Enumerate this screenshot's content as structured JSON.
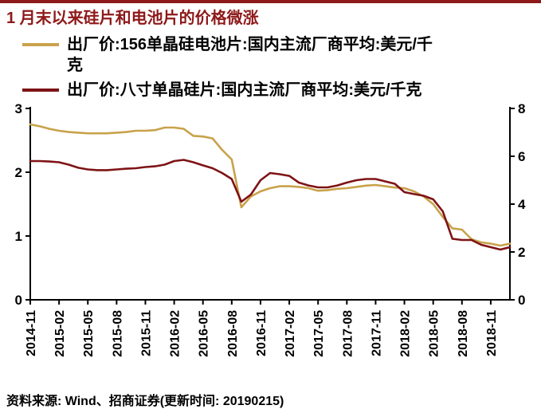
{
  "title": "1 月末以来硅片和电池片的价格微涨",
  "footer": {
    "source": "资料来源: Wind、招商证券(更新时间: 20190215)"
  },
  "theme": {
    "accent": "#8E1919",
    "axis": "#000000",
    "background": "#FFFFFF",
    "gold": "#C8A24B",
    "dark_red": "#7E1315"
  },
  "chart_data": {
    "type": "line",
    "title": "1 月末以来硅片和电池片的价格微涨",
    "legend_position": "top-left",
    "grid": false,
    "x_tick_step": 3,
    "months": [
      "2014-11",
      "2014-12",
      "2015-01",
      "2015-02",
      "2015-03",
      "2015-04",
      "2015-05",
      "2015-06",
      "2015-07",
      "2015-08",
      "2015-09",
      "2015-10",
      "2015-11",
      "2015-12",
      "2016-01",
      "2016-02",
      "2016-03",
      "2016-04",
      "2016-05",
      "2016-06",
      "2016-07",
      "2016-08",
      "2016-09",
      "2016-10",
      "2016-11",
      "2016-12",
      "2017-01",
      "2017-02",
      "2017-03",
      "2017-04",
      "2017-05",
      "2017-06",
      "2017-07",
      "2017-08",
      "2017-09",
      "2017-10",
      "2017-11",
      "2017-12",
      "2018-01",
      "2018-02",
      "2018-03",
      "2018-04",
      "2018-05",
      "2018-06",
      "2018-07",
      "2018-08",
      "2018-09",
      "2018-10",
      "2018-11",
      "2018-12",
      "2019-01"
    ],
    "left_axis": {
      "range": [
        0,
        3
      ],
      "ticks": [
        0,
        1,
        2,
        3
      ]
    },
    "right_axis": {
      "range": [
        0,
        8
      ],
      "ticks": [
        0,
        2,
        4,
        6,
        8
      ]
    },
    "series": [
      {
        "name": "出厂价:156单晶硅电池片:国内主流厂商平均:美元/千克",
        "axis": "left",
        "color": "#C8A24B",
        "values": [
          2.75,
          2.72,
          2.68,
          2.65,
          2.63,
          2.62,
          2.61,
          2.61,
          2.61,
          2.62,
          2.63,
          2.65,
          2.65,
          2.66,
          2.7,
          2.7,
          2.68,
          2.57,
          2.56,
          2.53,
          2.35,
          2.2,
          1.45,
          1.62,
          1.7,
          1.75,
          1.78,
          1.78,
          1.77,
          1.75,
          1.71,
          1.72,
          1.74,
          1.75,
          1.77,
          1.79,
          1.8,
          1.78,
          1.76,
          1.75,
          1.7,
          1.62,
          1.5,
          1.3,
          1.12,
          1.1,
          0.95,
          0.9,
          0.88,
          0.85,
          0.88
        ]
      },
      {
        "name": "出厂价:八寸单晶硅片:国内主流厂商平均:美元/千克",
        "axis": "right",
        "color": "#7E1315",
        "values": [
          5.8,
          5.8,
          5.78,
          5.75,
          5.65,
          5.52,
          5.45,
          5.42,
          5.42,
          5.45,
          5.48,
          5.5,
          5.55,
          5.58,
          5.65,
          5.8,
          5.85,
          5.75,
          5.62,
          5.5,
          5.3,
          5.05,
          4.1,
          4.4,
          5.0,
          5.3,
          5.25,
          5.18,
          4.9,
          4.78,
          4.7,
          4.7,
          4.78,
          4.9,
          5.0,
          5.05,
          5.05,
          4.95,
          4.85,
          4.5,
          4.42,
          4.35,
          4.2,
          3.7,
          2.55,
          2.5,
          2.5,
          2.3,
          2.2,
          2.1,
          2.2
        ]
      }
    ]
  }
}
